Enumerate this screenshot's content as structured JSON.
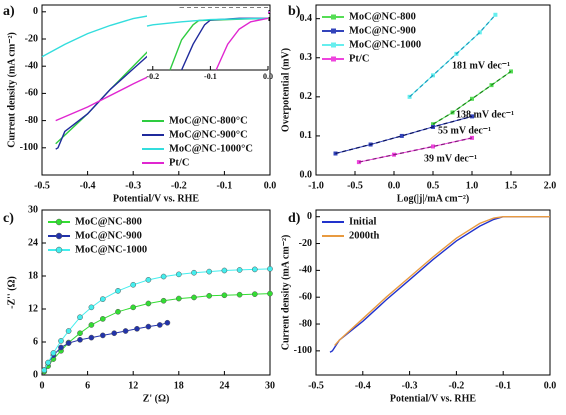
{
  "chart_data": [
    {
      "type": "line",
      "label": "a)",
      "xlabel": "Potential/V vs. RHE",
      "ylabel": "Current density (mA cm⁻²)",
      "xlim": [
        -0.5,
        0
      ],
      "ylim": [
        -120,
        5
      ],
      "xticks": [
        -0.5,
        -0.4,
        -0.3,
        -0.2,
        -0.1,
        {
          "value": 0,
          "label": "0.0"
        }
      ],
      "yticks": [
        0,
        -20,
        -40,
        -60,
        -80,
        -100
      ],
      "legend": "lower right",
      "series": [
        {
          "name": "MoC@NC-800°C",
          "color": "#2ecc40",
          "x": [
            -0.47,
            -0.4,
            -0.35,
            -0.3,
            -0.25,
            -0.2,
            -0.17,
            -0.14,
            -0.1,
            0
          ],
          "values": [
            -97,
            -75,
            -57,
            -40,
            -23,
            -8,
            -2,
            0,
            0,
            0
          ]
        },
        {
          "name": "MoC@NC-900°C",
          "color": "#1f2a9c",
          "x": [
            -0.47,
            -0.465,
            -0.45,
            -0.4,
            -0.35,
            -0.3,
            -0.25,
            -0.2,
            -0.17,
            -0.15,
            -0.12,
            -0.05,
            0
          ],
          "values": [
            -101,
            -100,
            -88,
            -75,
            -57,
            -42,
            -27,
            -12,
            -4,
            -1,
            0,
            0,
            0
          ]
        },
        {
          "name": "MoC@NC-1000°C",
          "color": "#33dddd",
          "x": [
            -0.5,
            -0.45,
            -0.4,
            -0.35,
            -0.3,
            -0.25,
            -0.2,
            -0.15,
            -0.1,
            0
          ],
          "values": [
            -33,
            -24,
            -16,
            -10,
            -5,
            -2,
            -0.5,
            0,
            0,
            0
          ]
        },
        {
          "name": "Pt/C",
          "color": "#e026d0",
          "x": [
            -0.47,
            -0.4,
            -0.3,
            -0.2,
            -0.1,
            -0.05,
            -0.02,
            0
          ],
          "values": [
            -80,
            -70,
            -53,
            -37,
            -20,
            -10,
            -3,
            0
          ]
        }
      ]
    },
    {
      "type": "line",
      "xlim": [
        -0.21,
        0
      ],
      "ylim": [
        -12,
        1
      ],
      "xticks": [
        -0.2,
        -0.1,
        {
          "value": 0,
          "label": "0.0"
        }
      ],
      "series": [
        {
          "color": "#2ecc40",
          "x": [
            -0.17,
            -0.15,
            -0.13,
            -0.12,
            0
          ],
          "values": [
            -12,
            -5,
            -1.5,
            -0.5,
            0
          ]
        },
        {
          "color": "#1f2a9c",
          "x": [
            -0.15,
            -0.13,
            -0.11,
            -0.1,
            -0.05,
            0
          ],
          "values": [
            -12,
            -6,
            -1.5,
            -0.4,
            0,
            0
          ]
        },
        {
          "color": "#33dddd",
          "x": [
            -0.21,
            -0.2,
            -0.15,
            -0.1,
            0
          ],
          "values": [
            -1.8,
            -1.5,
            -0.8,
            -0.3,
            0
          ]
        },
        {
          "color": "#e026d0",
          "x": [
            -0.09,
            -0.07,
            -0.05,
            -0.03,
            0
          ],
          "values": [
            -12,
            -6,
            -2.5,
            -0.8,
            0
          ]
        }
      ]
    },
    {
      "type": "tafel",
      "label": "b)",
      "xlabel": "Log(|j|/mA cm⁻²)",
      "ylabel": "Overpotential (mV)",
      "xlim": [
        -1,
        2
      ],
      "ylim": [
        0,
        0.435
      ],
      "xticks": [
        {
          "value": -1,
          "label": "-1.0"
        },
        -0.5,
        {
          "value": 0,
          "label": "0.0"
        },
        0.5,
        {
          "value": 1,
          "label": "1.0"
        },
        1.5,
        {
          "value": 2,
          "label": "2.0"
        }
      ],
      "yticks": [
        {
          "value": 0,
          "label": "0.0"
        },
        0.1,
        0.2,
        0.3,
        0.4
      ],
      "legend": "upper left",
      "series": [
        {
          "name": "MoC@NC-800",
          "color": "#55dd55",
          "fit_color": "#1a8a1a",
          "x": [
            0.5,
            0.75,
            1.0,
            1.25,
            1.5
          ],
          "values": [
            0.13,
            0.16,
            0.195,
            0.23,
            0.265
          ]
        },
        {
          "name": "MoC@NC-900",
          "color": "#3344bb",
          "fit_color": "#0a1260",
          "x": [
            -0.75,
            -0.3,
            0.1,
            0.5,
            1.0
          ],
          "values": [
            0.055,
            0.078,
            0.1,
            0.123,
            0.15
          ]
        },
        {
          "name": "MoC@NC-1000",
          "color": "#66eeee",
          "fit_color": "#1aa0c0",
          "x": [
            0.2,
            0.5,
            0.8,
            1.1,
            1.3
          ],
          "values": [
            0.2,
            0.255,
            0.31,
            0.365,
            0.41
          ]
        },
        {
          "name": "Pt/C",
          "color": "#ee44dd",
          "fit_color": "#8a1a80",
          "x": [
            -0.45,
            0,
            0.5,
            1.0
          ],
          "values": [
            0.033,
            0.052,
            0.073,
            0.095
          ]
        }
      ],
      "annotations": [
        "181 mV dec⁻¹",
        "138 mV dec⁻¹",
        "55 mV dec⁻¹",
        "39 mV dec⁻¹"
      ]
    },
    {
      "type": "nyquist",
      "label": "c)",
      "xlabel": "Z' (Ω)",
      "ylabel": "-Z'' (Ω)",
      "xlim": [
        0,
        30
      ],
      "ylim": [
        0,
        30
      ],
      "xticks": [
        0,
        6,
        12,
        18,
        24,
        30
      ],
      "yticks": [
        0,
        6,
        12,
        18,
        24,
        30
      ],
      "legend": "upper left",
      "series": [
        {
          "name": "MoC@NC-800",
          "color": "#33dd33",
          "x": [
            0.3,
            0.8,
            1.5,
            2.5,
            3.5,
            5,
            6.5,
            8,
            10,
            12,
            14,
            16,
            18,
            20,
            22,
            24,
            26,
            28,
            30
          ],
          "values": [
            0.63,
            1.62,
            2.9,
            4.4,
            5.9,
            7.6,
            9.1,
            10.2,
            11.5,
            12.3,
            13.0,
            13.5,
            13.9,
            14.1,
            14.4,
            14.5,
            14.6,
            14.7,
            14.8
          ]
        },
        {
          "name": "MoC@NC-900",
          "color": "#2233aa",
          "x": [
            0.3,
            0.8,
            1.5,
            2.5,
            3.5,
            5,
            6.5,
            8,
            9.5,
            11,
            12.5,
            14,
            15.5,
            16.5
          ],
          "values": [
            0.9,
            2.2,
            3.6,
            5.0,
            5.8,
            6.4,
            6.8,
            7.2,
            7.6,
            8.0,
            8.4,
            8.8,
            9.1,
            9.5
          ]
        },
        {
          "name": "MoC@NC-1000",
          "color": "#44eeee",
          "x": [
            0.3,
            0.8,
            1.5,
            2.5,
            3.5,
            5,
            6.5,
            8,
            10,
            12,
            14,
            16,
            18,
            20,
            22,
            24,
            26,
            28,
            30
          ],
          "values": [
            0.88,
            2.26,
            4.0,
            6.2,
            8.0,
            10.5,
            12.3,
            13.8,
            15.3,
            16.4,
            17.3,
            17.9,
            18.3,
            18.6,
            18.8,
            19.0,
            19.1,
            19.2,
            19.3
          ]
        }
      ]
    },
    {
      "type": "line",
      "label": "d)",
      "xlabel": "Potential/V vs. RHE",
      "ylabel": "Current density (mA cm⁻²)",
      "xlim": [
        -0.5,
        0
      ],
      "ylim": [
        -118,
        5
      ],
      "xticks": [
        -0.5,
        -0.4,
        -0.3,
        -0.2,
        -0.1,
        {
          "value": 0,
          "label": "0.0"
        }
      ],
      "yticks": [
        0,
        -20,
        -40,
        -60,
        -80,
        -100
      ],
      "legend": "upper left",
      "series": [
        {
          "name": "Initial",
          "color": "#2233cc",
          "x": [
            -0.47,
            -0.465,
            -0.45,
            -0.4,
            -0.35,
            -0.3,
            -0.25,
            -0.2,
            -0.15,
            -0.12,
            -0.1,
            -0.05,
            0
          ],
          "values": [
            -101,
            -100,
            -92,
            -78,
            -62,
            -47,
            -32,
            -18,
            -7,
            -2,
            0,
            0,
            0
          ]
        },
        {
          "name": "2000th",
          "color": "#e89a40",
          "x": [
            -0.46,
            -0.45,
            -0.4,
            -0.35,
            -0.3,
            -0.25,
            -0.2,
            -0.15,
            -0.12,
            -0.1,
            -0.05,
            0
          ],
          "values": [
            -96,
            -92,
            -76,
            -60,
            -45,
            -30,
            -16,
            -5,
            -1,
            0,
            0,
            0
          ]
        }
      ]
    }
  ]
}
